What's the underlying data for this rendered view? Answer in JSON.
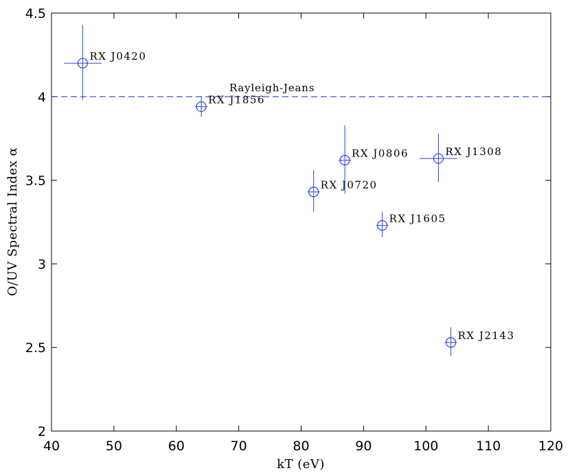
{
  "chart_data": {
    "type": "scatter",
    "title": "",
    "xlabel": "kT (eV)",
    "ylabel": "O/UV Spectral Index α",
    "xlim": [
      40,
      120
    ],
    "ylim": [
      2,
      4.5
    ],
    "grid": false,
    "x_ticks": [
      "40",
      "50",
      "60",
      "70",
      "80",
      "90",
      "100",
      "110",
      "120"
    ],
    "y_ticks": [
      "2",
      "2.5",
      "3",
      "3.5",
      "4",
      "4.5"
    ],
    "reference_line": {
      "y": 4,
      "label": "Rayleigh-Jeans",
      "style": "dashed"
    },
    "color": "#2b3fe0",
    "points": [
      {
        "label": "RX J0420",
        "x": 45,
        "y": 4.2,
        "x_err": [
          42,
          48
        ],
        "y_err": [
          3.98,
          4.43
        ]
      },
      {
        "label": "RX J1856",
        "x": 64,
        "y": 3.94,
        "x_err": [
          63,
          65
        ],
        "y_err": [
          3.88,
          4.0
        ]
      },
      {
        "label": "RX J0720",
        "x": 82,
        "y": 3.43,
        "x_err": [
          81,
          83
        ],
        "y_err": [
          3.31,
          3.56
        ]
      },
      {
        "label": "RX J0806",
        "x": 87,
        "y": 3.62,
        "x_err": [
          86,
          88
        ],
        "y_err": [
          3.42,
          3.83
        ]
      },
      {
        "label": "RX J1308",
        "x": 102,
        "y": 3.63,
        "x_err": [
          99,
          105
        ],
        "y_err": [
          3.49,
          3.78
        ]
      },
      {
        "label": "RX J1605",
        "x": 93,
        "y": 3.23,
        "x_err": [
          92,
          94
        ],
        "y_err": [
          3.16,
          3.31
        ]
      },
      {
        "label": "RX J2143",
        "x": 104,
        "y": 2.53,
        "x_err": [
          103,
          105
        ],
        "y_err": [
          2.45,
          2.62
        ]
      }
    ]
  }
}
